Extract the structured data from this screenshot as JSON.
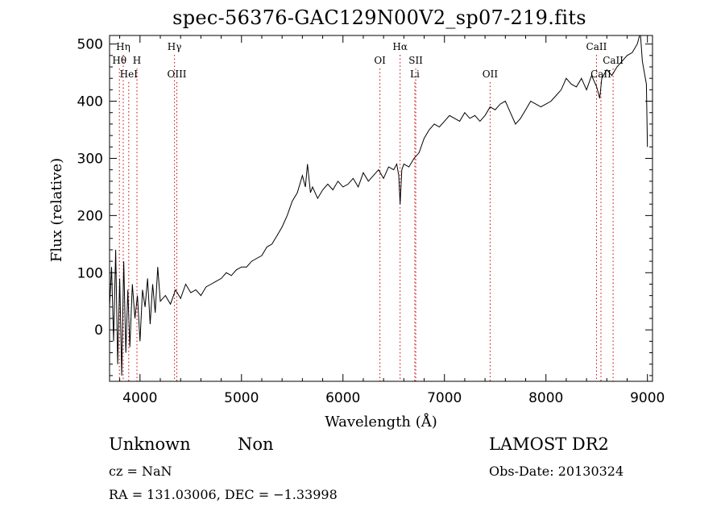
{
  "chart_data": {
    "type": "line",
    "title": "spec-56376-GAC129N00V2_sp07-219.fits",
    "xlabel": "Wavelength (Å)",
    "ylabel": "Flux (relative)",
    "xlim": [
      3700,
      9050
    ],
    "ylim": [
      -90,
      515
    ],
    "xticks": [
      4000,
      5000,
      6000,
      7000,
      8000,
      9000
    ],
    "yticks": [
      0,
      100,
      200,
      300,
      400,
      500
    ],
    "series": [
      {
        "x": [
          3700,
          3720,
          3740,
          3760,
          3780,
          3800,
          3820,
          3840,
          3860,
          3880,
          3900,
          3925,
          3950,
          3975,
          4000,
          4025,
          4050,
          4075,
          4100,
          4125,
          4150,
          4175,
          4200,
          4250,
          4300,
          4350,
          4400,
          4450,
          4500,
          4550,
          4600,
          4650,
          4700,
          4750,
          4800,
          4850,
          4900,
          4950,
          5000,
          5050,
          5100,
          5150,
          5200,
          5250,
          5300,
          5350,
          5400,
          5450,
          5500,
          5550,
          5600,
          5630,
          5650,
          5680,
          5700,
          5750,
          5800,
          5850,
          5900,
          5950,
          6000,
          6050,
          6100,
          6150,
          6200,
          6250,
          6300,
          6350,
          6400,
          6450,
          6500,
          6530,
          6550,
          6563,
          6580,
          6600,
          6650,
          6700,
          6750,
          6800,
          6850,
          6900,
          6950,
          7000,
          7050,
          7100,
          7150,
          7200,
          7250,
          7300,
          7350,
          7400,
          7450,
          7500,
          7550,
          7600,
          7650,
          7700,
          7750,
          7800,
          7850,
          7900,
          7950,
          8000,
          8050,
          8100,
          8150,
          8200,
          8250,
          8300,
          8350,
          8400,
          8450,
          8500,
          8530,
          8550,
          8600,
          8650,
          8700,
          8750,
          8800,
          8850,
          8900,
          8930,
          8950,
          8970,
          8990,
          9000
        ],
        "values": [
          40,
          110,
          -20,
          140,
          -60,
          90,
          -80,
          120,
          -40,
          70,
          -30,
          80,
          20,
          60,
          -20,
          70,
          40,
          90,
          10,
          80,
          30,
          110,
          50,
          60,
          45,
          70,
          55,
          80,
          65,
          70,
          60,
          75,
          80,
          85,
          90,
          100,
          95,
          105,
          110,
          110,
          120,
          125,
          130,
          145,
          150,
          165,
          180,
          200,
          225,
          240,
          270,
          250,
          290,
          240,
          250,
          230,
          245,
          255,
          245,
          260,
          250,
          255,
          265,
          250,
          275,
          260,
          270,
          280,
          265,
          285,
          280,
          290,
          270,
          220,
          280,
          290,
          285,
          300,
          310,
          335,
          350,
          360,
          355,
          365,
          375,
          370,
          365,
          380,
          370,
          375,
          365,
          375,
          390,
          385,
          395,
          400,
          380,
          360,
          370,
          385,
          400,
          395,
          390,
          395,
          400,
          410,
          420,
          440,
          430,
          425,
          440,
          420,
          445,
          425,
          405,
          440,
          455,
          445,
          460,
          470,
          480,
          485,
          500,
          520,
          470,
          450,
          430,
          320
        ]
      }
    ],
    "lines": [
      {
        "label": "Hη",
        "x": 3835,
        "row": 1
      },
      {
        "label": "Hθ",
        "x": 3797,
        "row": 2
      },
      {
        "label": "H",
        "x": 3970,
        "row": 2
      },
      {
        "label": "HeI",
        "x": 3889,
        "row": 3
      },
      {
        "label": "Hγ",
        "x": 4340,
        "row": 1
      },
      {
        "label": "OIII",
        "x": 4363,
        "row": 3
      },
      {
        "label": "OI",
        "x": 6364,
        "row": 2
      },
      {
        "label": "Hα",
        "x": 6563,
        "row": 1
      },
      {
        "label": "SII",
        "x": 6717,
        "row": 2
      },
      {
        "label": "Li",
        "x": 6708,
        "row": 3
      },
      {
        "label": "OII",
        "x": 7450,
        "row": 3
      },
      {
        "label": "CaII",
        "x": 8498,
        "row": 1
      },
      {
        "label": "CaII",
        "x": 8662,
        "row": 2
      },
      {
        "label": "CaII",
        "x": 8542,
        "row": 3
      }
    ],
    "grid": false
  },
  "info": {
    "class": "Unknown",
    "subclass": "Non",
    "cz": "cz = NaN",
    "coords": "RA = 131.03006, DEC =  −1.33998",
    "survey": "LAMOST DR2",
    "obs_date": "Obs-Date: 20130324"
  },
  "colors": {
    "spectrum": "#000000",
    "line_marker": "#cc0000"
  }
}
